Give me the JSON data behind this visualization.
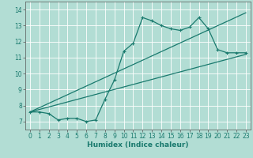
{
  "xlabel": "Humidex (Indice chaleur)",
  "background_color": "#b2ddd4",
  "grid_color": "#ffffff",
  "line_color": "#1a7a6e",
  "xlim": [
    -0.5,
    23.5
  ],
  "ylim": [
    6.5,
    14.5
  ],
  "xticks": [
    0,
    1,
    2,
    3,
    4,
    5,
    6,
    7,
    8,
    9,
    10,
    11,
    12,
    13,
    14,
    15,
    16,
    17,
    18,
    19,
    20,
    21,
    22,
    23
  ],
  "yticks": [
    7,
    8,
    9,
    10,
    11,
    12,
    13,
    14
  ],
  "series1_x": [
    0,
    1,
    2,
    3,
    4,
    5,
    6,
    7,
    8,
    9,
    10,
    11,
    12,
    13,
    14,
    15,
    16,
    17,
    18,
    19,
    20,
    21,
    22,
    23
  ],
  "series1_y": [
    7.6,
    7.6,
    7.5,
    7.1,
    7.2,
    7.2,
    7.0,
    7.1,
    8.4,
    9.6,
    11.4,
    11.9,
    13.5,
    13.3,
    13.0,
    12.8,
    12.7,
    12.9,
    13.5,
    12.8,
    11.5,
    11.3,
    11.3,
    11.3
  ],
  "series2_x": [
    0,
    23
  ],
  "series2_y": [
    7.6,
    11.2
  ],
  "series3_x": [
    0,
    23
  ],
  "series3_y": [
    7.6,
    13.8
  ],
  "markersize": 2.5,
  "linewidth": 0.9,
  "tick_fontsize": 5.5,
  "xlabel_fontsize": 6.5
}
